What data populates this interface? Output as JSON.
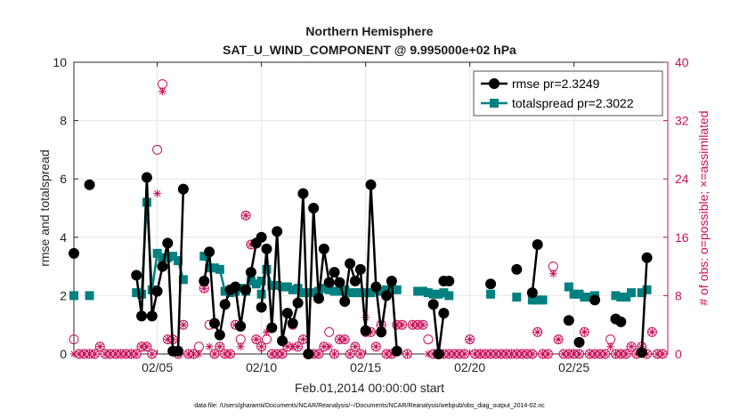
{
  "chart_data": {
    "type": "line",
    "title": "Northern Hemisphere",
    "subtitle": "SAT_U_WIND_COMPONENT @ 9.995000e+02 hPa",
    "xlabel": "Feb.01,2014 00:00:00 start",
    "ylabel": "rmse and totalspread",
    "y2label": "# of obs: o=possible; ×=assimilated",
    "footnote": "data file: /Users/gharamti/Documents/NCAR/Reanalysis/~/Documents/NCAR/Reanalysis/webpub/obs_diag_output_2014-02.nc",
    "xlim": [
      1,
      29.5
    ],
    "ylim": [
      0,
      10
    ],
    "y2lim": [
      0,
      40
    ],
    "x_ticks": [
      5,
      10,
      15,
      20,
      25
    ],
    "x_tick_labels": [
      "02/05",
      "02/10",
      "02/15",
      "02/20",
      "02/25"
    ],
    "y_ticks": [
      0,
      2,
      4,
      6,
      8,
      10
    ],
    "y2_ticks": [
      0,
      8,
      16,
      24,
      32,
      40
    ],
    "grid": true,
    "legend_position": "top-right",
    "colors": {
      "rmse": "#000000",
      "totalspread": "#008080",
      "obs": "#c8105a"
    },
    "series": [
      {
        "name": "rmse pr=2.3249",
        "segments": [
          {
            "x": [
              1.0
            ],
            "y": [
              3.45
            ]
          },
          {
            "x": [
              1.75
            ],
            "y": [
              5.8
            ]
          },
          {
            "x": [
              4.0,
              4.25,
              4.5,
              4.75,
              5.0,
              5.25,
              5.5,
              5.75,
              6.0,
              6.25
            ],
            "y": [
              2.7,
              1.3,
              6.05,
              1.3,
              2.15,
              3.0,
              3.8,
              0.1,
              0.1,
              5.65
            ]
          },
          {
            "x": [
              7.25,
              7.5,
              7.75,
              8.0,
              8.25,
              8.5,
              8.75,
              9.0,
              9.25,
              9.5,
              9.75,
              10.0
            ],
            "y": [
              2.5,
              3.5,
              1.05,
              0.65,
              1.7,
              2.2,
              2.3,
              0.95,
              2.2,
              2.8,
              3.8,
              4.0
            ]
          },
          {
            "x": [
              10.0,
              10.25,
              10.5,
              10.75,
              11.0,
              11.25,
              11.5,
              11.75,
              12.0,
              12.25,
              12.5,
              12.75,
              13.0,
              13.25,
              13.5,
              13.75,
              14.0,
              14.25,
              14.5,
              14.75,
              15.0,
              15.25,
              15.5,
              15.75,
              16.0,
              16.25,
              16.5
            ],
            "y": [
              1.6,
              3.6,
              0.9,
              4.2,
              0.45,
              1.4,
              1.05,
              1.75,
              5.5,
              0.0,
              5.0,
              1.9,
              3.6,
              2.45,
              2.8,
              2.45,
              1.8,
              3.1,
              2.5,
              2.9,
              0.8,
              5.8,
              2.3,
              0.75,
              2.0,
              2.5,
              0.1
            ]
          },
          {
            "x": [
              18.25,
              18.5,
              18.75
            ],
            "y": [
              1.7,
              0.0,
              1.4
            ]
          },
          {
            "x": [
              18.75,
              19.0
            ],
            "y": [
              2.5,
              2.5
            ]
          },
          {
            "x": [
              21.0
            ],
            "y": [
              2.4
            ]
          },
          {
            "x": [
              22.25
            ],
            "y": [
              2.9
            ]
          },
          {
            "x": [
              23.0,
              23.25
            ],
            "y": [
              2.1,
              3.75
            ]
          },
          {
            "x": [
              24.75
            ],
            "y": [
              1.15
            ]
          },
          {
            "x": [
              25.25
            ],
            "y": [
              0.4
            ]
          },
          {
            "x": [
              26.0
            ],
            "y": [
              1.85
            ]
          },
          {
            "x": [
              27.0,
              27.25
            ],
            "y": [
              1.2,
              1.1
            ]
          },
          {
            "x": [
              28.25,
              28.5
            ],
            "y": [
              0.05,
              3.3
            ]
          }
        ]
      },
      {
        "name": "totalspread pr=2.3022",
        "segments": [
          {
            "x": [
              1.0
            ],
            "y": [
              2.0
            ]
          },
          {
            "x": [
              1.75
            ],
            "y": [
              2.0
            ]
          },
          {
            "x": [
              4.0,
              4.25,
              4.5,
              4.75,
              5.0,
              5.25,
              5.5,
              5.75,
              6.0,
              6.25
            ],
            "y": [
              2.1,
              2.05,
              5.2,
              2.2,
              3.45,
              3.3,
              3.3,
              3.35,
              3.2,
              2.55
            ]
          },
          {
            "x": [
              7.25,
              7.5,
              7.75,
              8.0,
              8.25,
              8.5,
              8.75,
              9.0,
              9.25,
              9.5,
              9.75,
              10.0
            ],
            "y": [
              3.35,
              2.95,
              2.95,
              2.9,
              2.15,
              2.1,
              2.15,
              2.25,
              2.15,
              2.5,
              2.4,
              2.5
            ]
          },
          {
            "x": [
              10.0,
              10.25,
              10.5,
              10.75,
              11.0,
              11.25,
              11.5,
              11.75,
              12.0,
              12.25,
              12.5,
              12.75,
              13.0,
              13.25,
              13.5,
              13.75,
              14.0,
              14.25,
              14.5,
              14.75,
              15.0,
              15.25,
              15.5,
              15.75,
              16.0,
              16.25,
              16.5
            ],
            "y": [
              2.05,
              2.9,
              2.35,
              2.35,
              2.3,
              2.3,
              2.2,
              2.25,
              2.1,
              2.1,
              2.1,
              2.15,
              2.25,
              2.2,
              2.15,
              2.15,
              2.2,
              2.1,
              2.1,
              2.1,
              2.1,
              2.1,
              2.2,
              2.15,
              2.2,
              2.25,
              2.2
            ]
          },
          {
            "x": [
              17.5,
              17.75,
              18.0,
              18.25,
              18.5,
              18.75,
              19.0
            ],
            "y": [
              2.15,
              2.15,
              2.1,
              2.05,
              2.05,
              2.1,
              2.0
            ]
          },
          {
            "x": [
              21.0
            ],
            "y": [
              2.05
            ]
          },
          {
            "x": [
              22.25
            ],
            "y": [
              1.95
            ]
          },
          {
            "x": [
              23.0,
              23.25,
              23.5
            ],
            "y": [
              1.85,
              1.85,
              1.85
            ]
          },
          {
            "x": [
              24.75,
              25.0,
              25.25,
              25.5,
              25.75,
              26.0
            ],
            "y": [
              2.3,
              2.05,
              2.05,
              1.95,
              1.95,
              2.0
            ]
          },
          {
            "x": [
              27.0,
              27.25,
              27.5,
              27.75
            ],
            "y": [
              2.0,
              1.95,
              1.95,
              2.1
            ]
          },
          {
            "x": [
              28.25,
              28.5
            ],
            "y": [
              2.1,
              2.2
            ]
          }
        ]
      },
      {
        "name": "# obs possible (o)",
        "axis": "right",
        "x": [
          1.0,
          1.25,
          1.5,
          1.75,
          2.0,
          2.25,
          2.5,
          2.75,
          3.0,
          3.25,
          3.5,
          3.75,
          4.0,
          4.25,
          4.5,
          4.75,
          5.0,
          5.25,
          5.5,
          5.75,
          6.0,
          6.25,
          6.5,
          6.75,
          7.0,
          7.25,
          7.5,
          7.75,
          8.0,
          8.25,
          8.5,
          8.75,
          9.0,
          9.25,
          9.5,
          9.75,
          10.0,
          10.25,
          10.5,
          10.75,
          11.0,
          11.25,
          11.5,
          11.75,
          12.0,
          12.25,
          12.5,
          12.75,
          13.0,
          13.25,
          13.5,
          13.75,
          14.0,
          14.25,
          14.5,
          14.75,
          15.0,
          15.25,
          15.5,
          15.75,
          16.0,
          16.25,
          16.5,
          16.75,
          17.0,
          17.25,
          17.5,
          17.75,
          18.0,
          18.25,
          18.5,
          18.75,
          19.0,
          19.25,
          19.5,
          19.75,
          20.0,
          20.25,
          20.5,
          20.75,
          21.0,
          21.25,
          21.5,
          21.75,
          22.0,
          22.25,
          22.5,
          22.75,
          23.0,
          23.25,
          23.5,
          23.75,
          24.0,
          24.25,
          24.5,
          24.75,
          25.0,
          25.25,
          25.5,
          25.75,
          26.0,
          26.25,
          26.5,
          26.75,
          27.0,
          27.25,
          27.5,
          27.75,
          28.0,
          28.25,
          28.5,
          28.75,
          29.0,
          29.25
        ],
        "y": [
          2,
          0,
          0,
          0,
          0,
          1,
          0,
          0,
          0,
          0,
          0,
          0,
          0,
          1,
          1,
          0,
          28,
          37,
          2,
          2,
          0,
          4,
          0,
          0,
          1,
          9,
          4,
          0,
          1,
          0,
          0,
          4,
          2,
          19,
          15,
          2,
          1,
          2,
          0,
          0,
          0,
          1,
          4,
          1,
          2,
          0,
          0,
          0,
          1,
          3,
          0,
          2,
          2,
          0,
          1,
          0,
          3,
          3,
          1,
          4,
          0,
          0,
          4,
          4,
          0,
          4,
          4,
          4,
          2,
          0,
          0,
          0,
          0,
          0,
          0,
          0,
          2,
          0,
          0,
          0,
          0,
          0,
          0,
          0,
          0,
          0,
          0,
          0,
          0,
          3,
          0,
          0,
          12,
          2,
          0,
          0,
          0,
          0,
          3,
          0,
          0,
          0,
          0,
          2,
          0,
          0,
          0,
          1,
          0,
          1,
          0,
          3,
          0,
          0
        ],
        "marker": "o"
      },
      {
        "name": "# obs assimilated (×)",
        "axis": "right",
        "x": [
          1.0,
          1.25,
          1.5,
          1.75,
          2.0,
          2.25,
          2.5,
          2.75,
          3.0,
          3.25,
          3.5,
          3.75,
          4.0,
          4.25,
          4.5,
          4.75,
          5.0,
          5.25,
          5.5,
          5.75,
          6.0,
          6.25,
          6.5,
          6.75,
          7.0,
          7.25,
          7.5,
          7.75,
          8.0,
          8.25,
          8.5,
          8.75,
          9.0,
          9.25,
          9.5,
          9.75,
          10.0,
          10.25,
          10.5,
          10.75,
          11.0,
          11.25,
          11.5,
          11.75,
          12.0,
          12.25,
          12.5,
          12.75,
          13.0,
          13.25,
          13.5,
          13.75,
          14.0,
          14.25,
          14.5,
          14.75,
          15.0,
          15.25,
          15.5,
          15.75,
          16.0,
          16.25,
          16.5,
          16.75,
          17.0,
          17.25,
          17.5,
          17.75,
          18.0,
          18.25,
          18.5,
          18.75,
          19.0,
          19.25,
          19.5,
          19.75,
          20.0,
          20.25,
          20.5,
          20.75,
          21.0,
          21.25,
          21.5,
          21.75,
          22.0,
          22.25,
          22.5,
          22.75,
          23.0,
          23.25,
          23.5,
          23.75,
          24.0,
          24.25,
          24.5,
          24.75,
          25.0,
          25.25,
          25.5,
          25.75,
          26.0,
          26.25,
          26.5,
          26.75,
          27.0,
          27.25,
          27.5,
          27.75,
          28.0,
          28.25,
          28.5,
          28.75,
          29.0,
          29.25
        ],
        "y": [
          0,
          0,
          0,
          0,
          0,
          1,
          0,
          0,
          0,
          0,
          0,
          0,
          0,
          1,
          1,
          0,
          22,
          36,
          2,
          2,
          0,
          4,
          0,
          0,
          0,
          9,
          1,
          0,
          1,
          0,
          0,
          4,
          1,
          19,
          15,
          2,
          1,
          3,
          0,
          0,
          0,
          1,
          1,
          1,
          2,
          0,
          0,
          0,
          1,
          1,
          0,
          2,
          2,
          0,
          1,
          0,
          5,
          3,
          1,
          4,
          0,
          0,
          4,
          4,
          0,
          4,
          4,
          4,
          0,
          0,
          0,
          0,
          0,
          0,
          0,
          0,
          2,
          0,
          0,
          0,
          0,
          0,
          0,
          0,
          0,
          0,
          0,
          0,
          0,
          3,
          0,
          0,
          11,
          2,
          0,
          0,
          0,
          0,
          3,
          0,
          0,
          0,
          0,
          1,
          0,
          0,
          0,
          1,
          0,
          1,
          0,
          3,
          0,
          0
        ],
        "marker": "*"
      }
    ]
  }
}
